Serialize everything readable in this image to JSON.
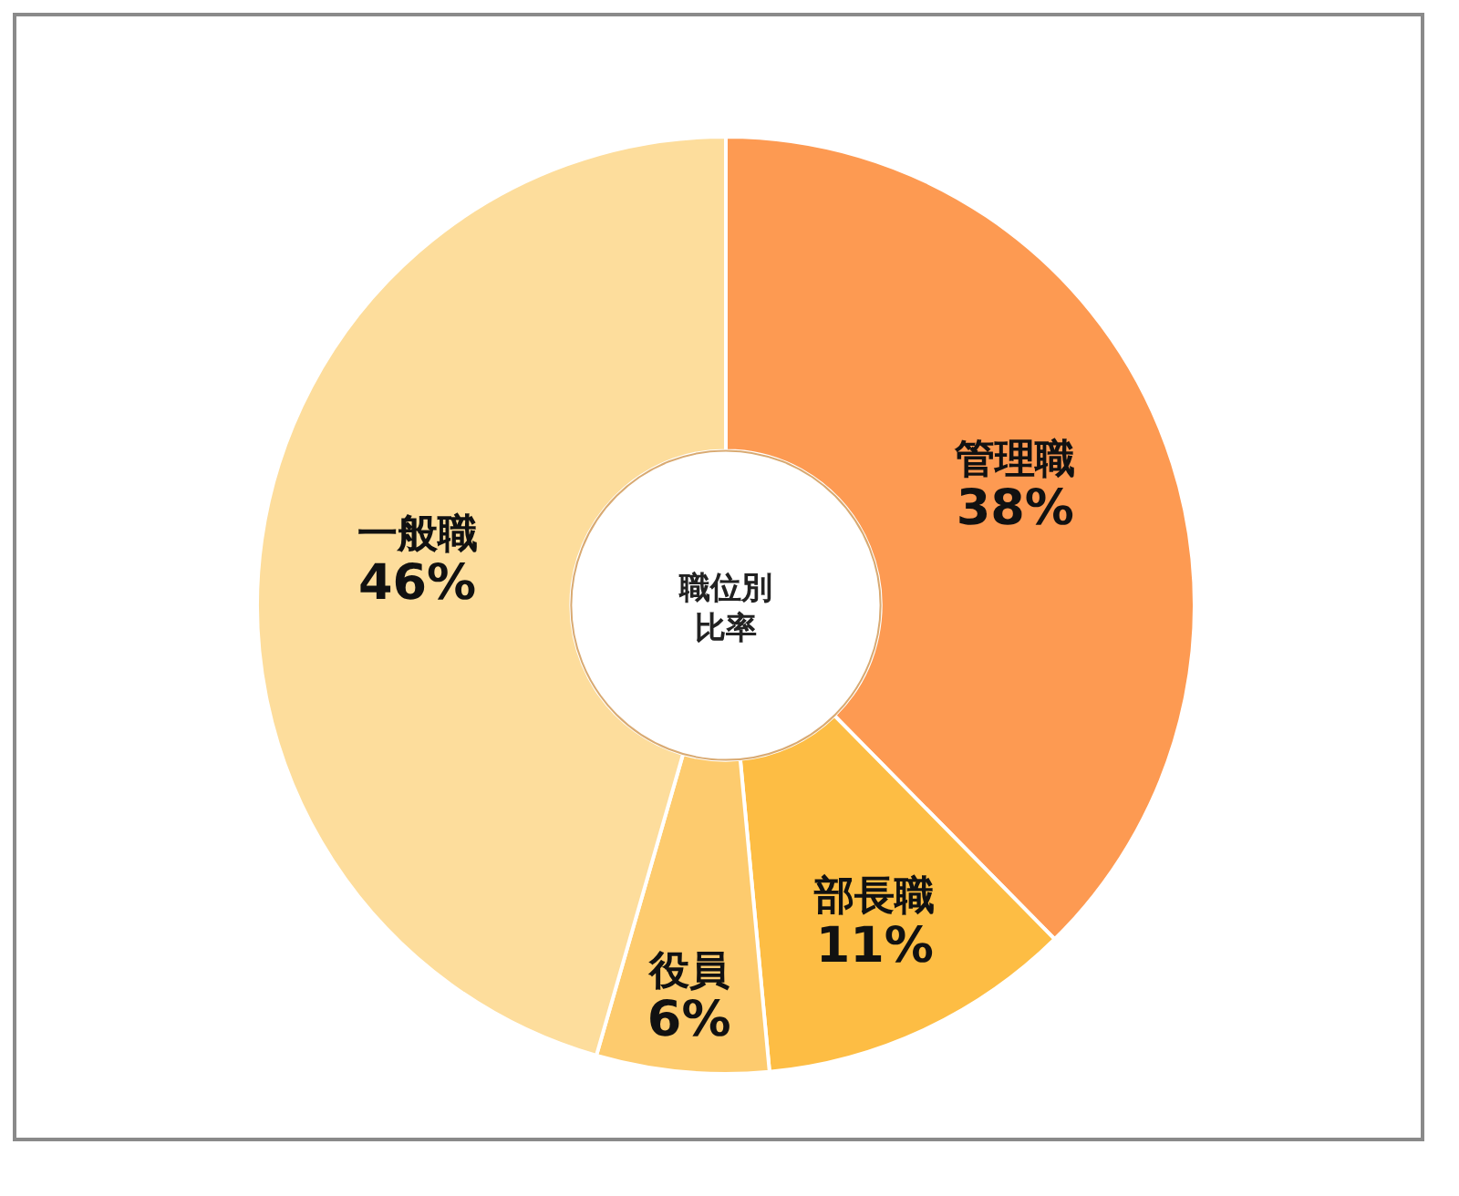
{
  "chart_data": {
    "type": "donut",
    "title": "職位別比率",
    "categories": [
      "管理職",
      "部長職",
      "役員",
      "一般職"
    ],
    "values": [
      38,
      11,
      6,
      46
    ],
    "value_labels": [
      "38%",
      "11%",
      "6%",
      "46%"
    ],
    "colors": [
      "#fd9a52",
      "#fdbd44",
      "#fdcb6e",
      "#fddd9c"
    ]
  }
}
